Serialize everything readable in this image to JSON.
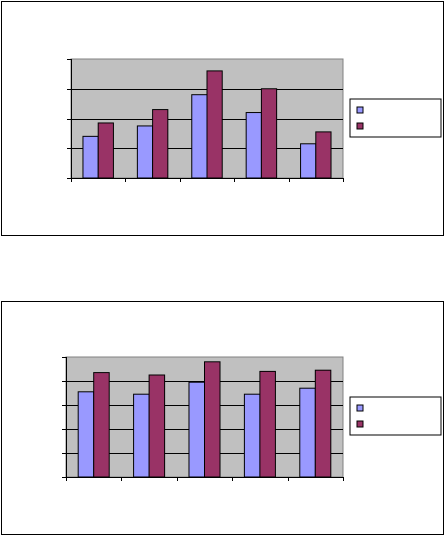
{
  "chart_data": [
    {
      "type": "bar",
      "title": "",
      "xlabel": "",
      "ylabel": "",
      "categories": [
        "",
        "",
        "",
        "",
        ""
      ],
      "ylim": [
        0,
        4
      ],
      "grid": true,
      "legend": "right",
      "series": [
        {
          "values": [
            1.4,
            1.75,
            2.8,
            2.2,
            1.15
          ]
        },
        {
          "values": [
            1.85,
            2.3,
            3.6,
            3.0,
            1.55
          ]
        }
      ]
    },
    {
      "type": "bar",
      "title": "",
      "xlabel": "",
      "ylabel": "",
      "categories": [
        "",
        "",
        "",
        "",
        ""
      ],
      "ylim": [
        0,
        5
      ],
      "grid": true,
      "legend": "right",
      "series": [
        {
          "values": [
            3.55,
            3.45,
            3.95,
            3.45,
            3.7
          ]
        },
        {
          "values": [
            4.35,
            4.25,
            4.8,
            4.4,
            4.45
          ]
        }
      ]
    }
  ],
  "colors": {
    "series_1": "#9999ff",
    "series_2": "#993366",
    "plot_background": "#c0c0c0"
  }
}
